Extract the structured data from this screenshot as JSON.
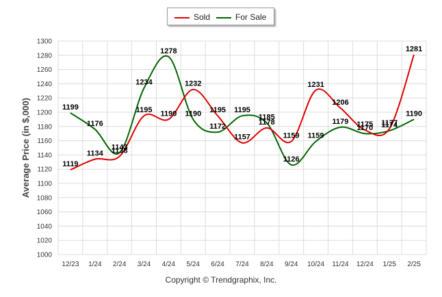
{
  "legend": {
    "sold_label": "Sold",
    "forsale_label": "For Sale"
  },
  "copyright": "Copyright © Trendgraphix, Inc.",
  "colors": {
    "sold": "#e00000",
    "forsale": "#006400",
    "grid": "#dcdcdc"
  },
  "chart_data": {
    "type": "line",
    "categories": [
      "12/23",
      "1/24",
      "2/24",
      "3/24",
      "4/24",
      "5/24",
      "6/24",
      "7/24",
      "8/24",
      "9/24",
      "10/24",
      "11/24",
      "12/24",
      "1/25",
      "2/25"
    ],
    "series": [
      {
        "name": "Sold",
        "values": [
          1119,
          1134,
          1138,
          1195,
          1190,
          1232,
          1195,
          1157,
          1178,
          1159,
          1231,
          1206,
          1175,
          1177,
          1281
        ]
      },
      {
        "name": "For Sale",
        "values": [
          1199,
          1176,
          1143,
          1234,
          1278,
          1190,
          1172,
          1195,
          1185,
          1126,
          1159,
          1179,
          1170,
          1174,
          1190
        ]
      }
    ],
    "xlabel": "",
    "ylabel": "Average Price (in $,000)",
    "ylim": [
      1000,
      1300
    ],
    "yticks": [
      1000,
      1020,
      1040,
      1060,
      1080,
      1100,
      1120,
      1140,
      1160,
      1180,
      1200,
      1220,
      1240,
      1260,
      1280,
      1300
    ],
    "grid": true,
    "legend_position": "top-center"
  }
}
